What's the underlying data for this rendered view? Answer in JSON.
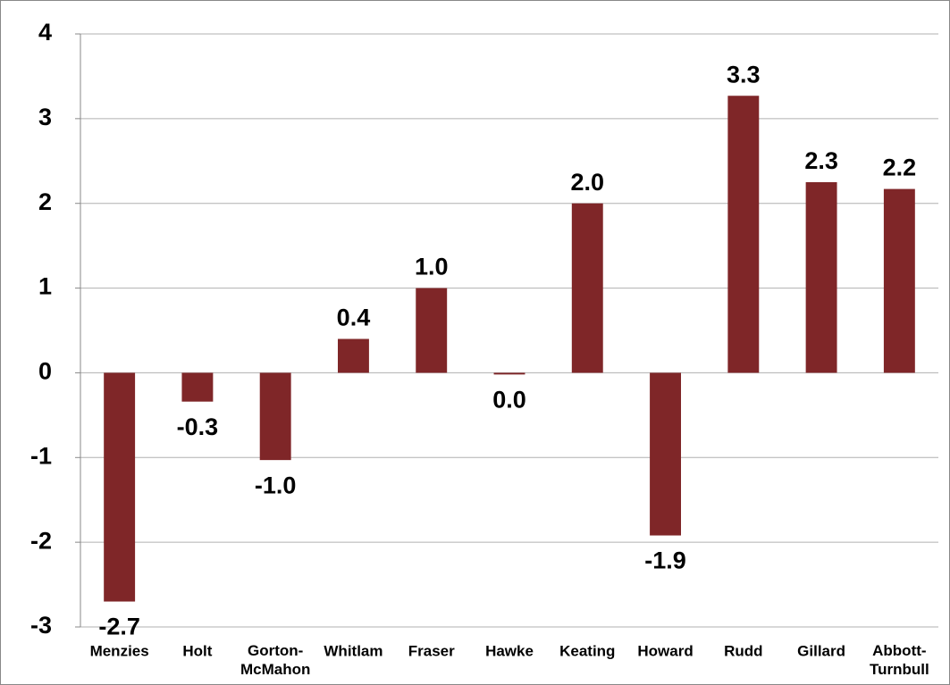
{
  "chart_data": {
    "type": "bar",
    "categories": [
      "Menzies",
      "Holt",
      "Gorton-McMahon",
      "Whitlam",
      "Fraser",
      "Hawke",
      "Keating",
      "Howard",
      "Rudd",
      "Gillard",
      "Abbott-Turnbull"
    ],
    "values": [
      -2.7,
      -0.34,
      -1.03,
      0.4,
      1.0,
      -0.02,
      2.0,
      -1.92,
      3.27,
      2.25,
      2.17
    ],
    "value_labels": [
      "-2.7",
      "-0.3",
      "-1.0",
      "0.4",
      "1.0",
      "0.0",
      "2.0",
      "-1.9",
      "3.3",
      "2.3",
      "2.2"
    ],
    "color": "#7f2628",
    "ylim": [
      -3,
      4
    ],
    "yticks": [
      -3,
      -2,
      -1,
      0,
      1,
      2,
      3,
      4
    ],
    "grid": true
  }
}
